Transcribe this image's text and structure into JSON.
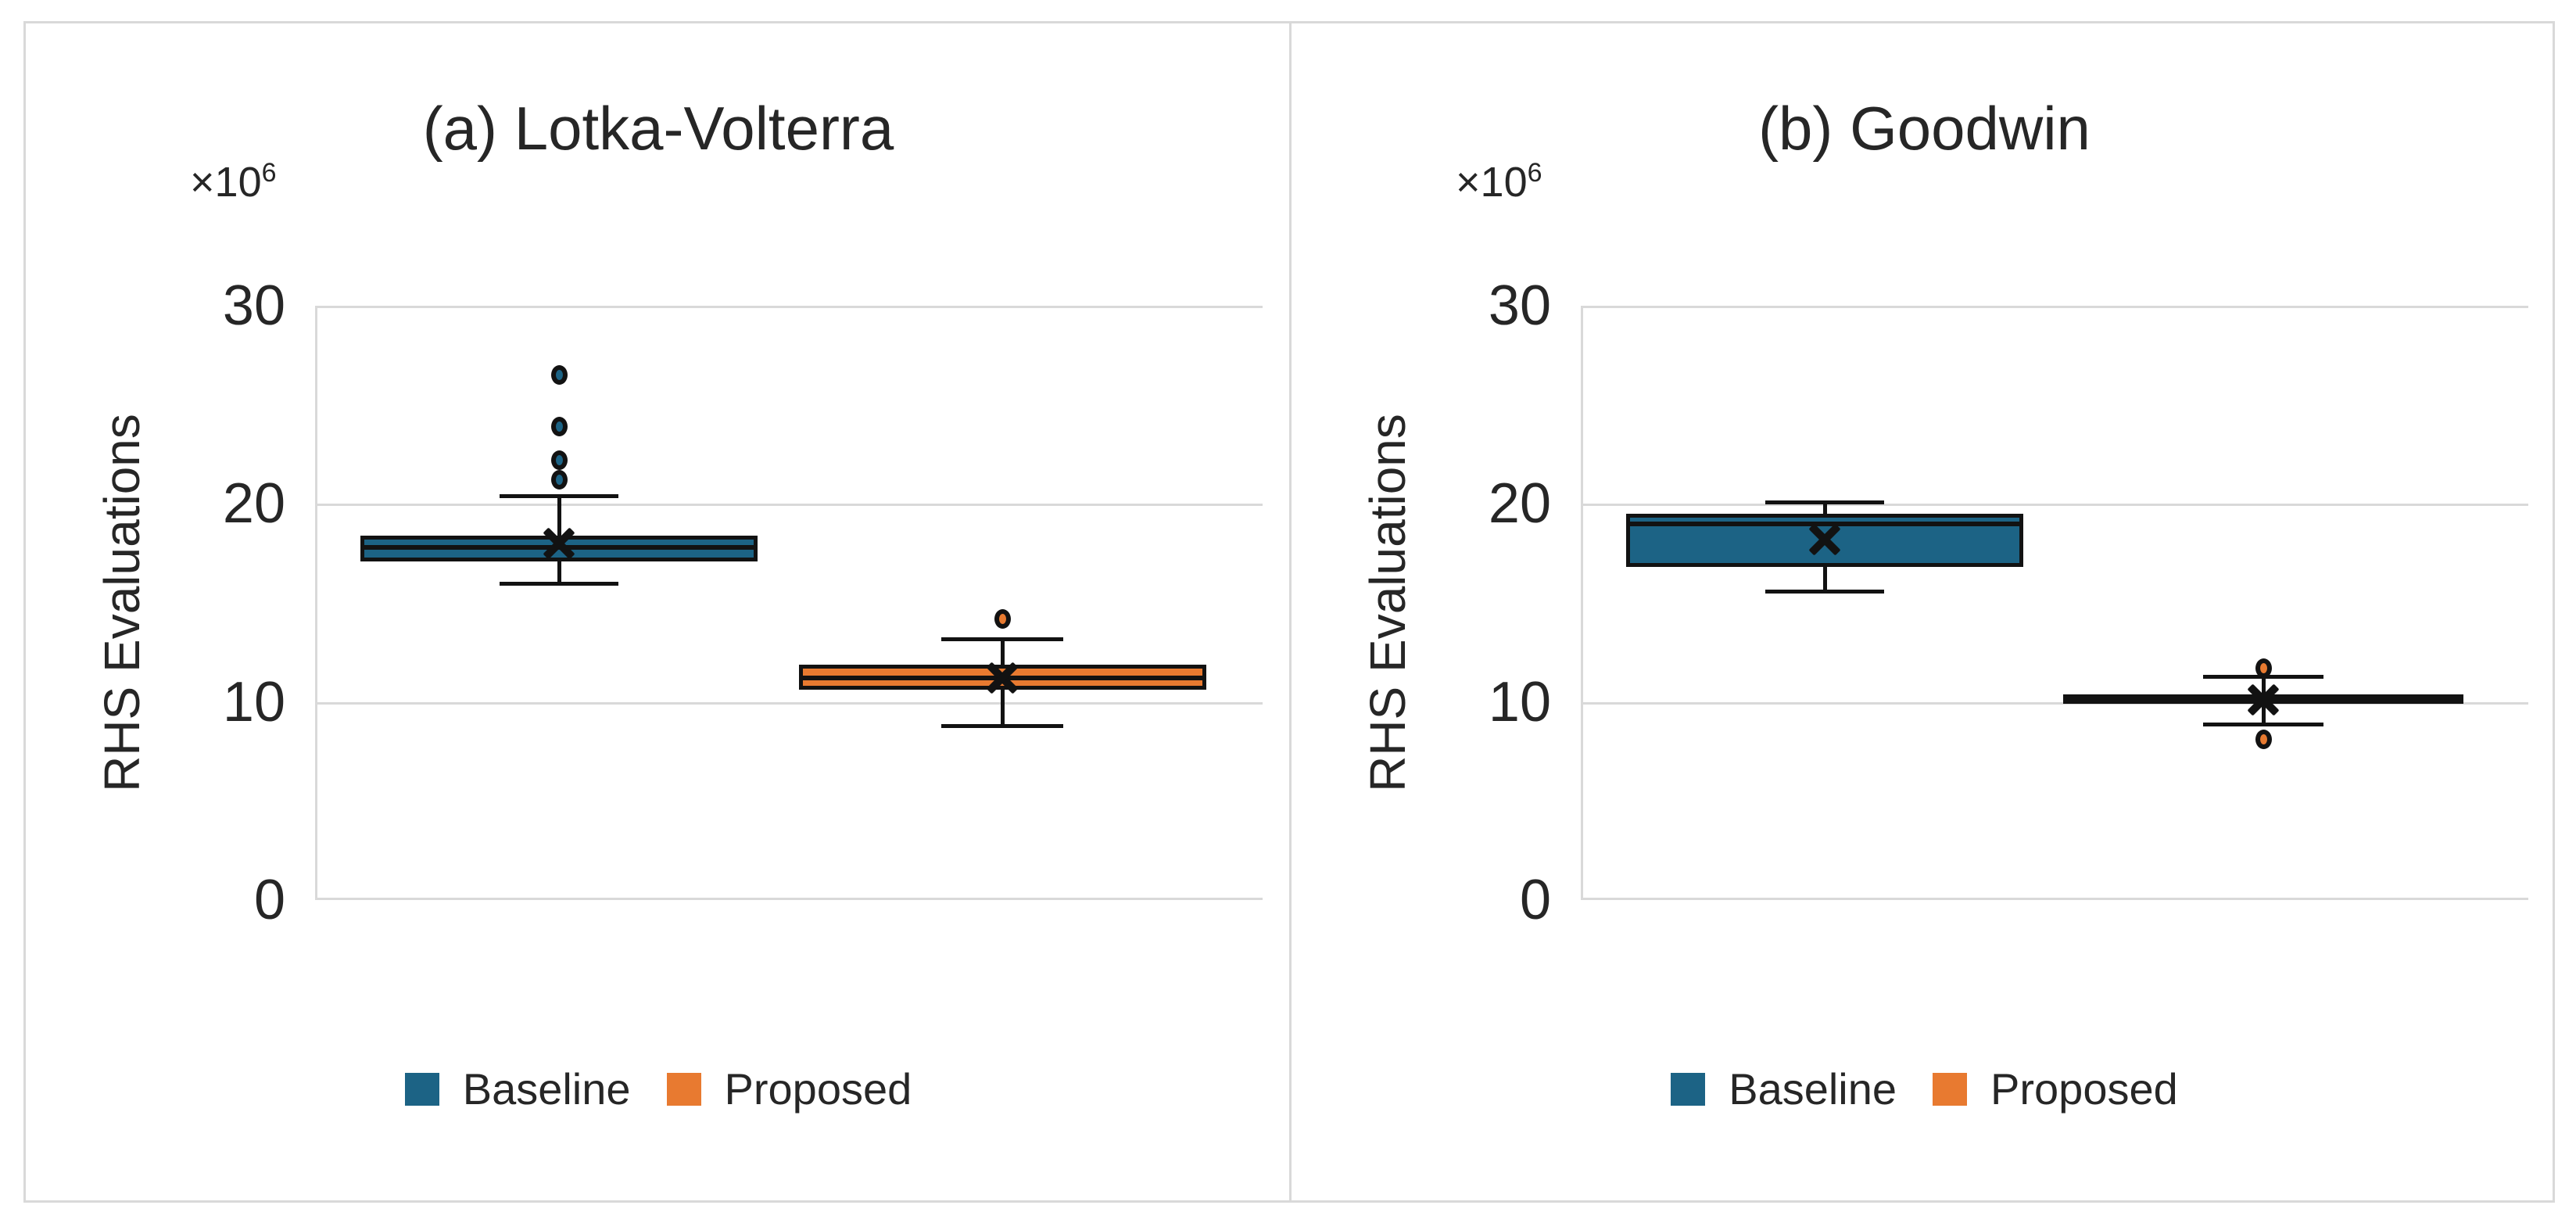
{
  "figure": {
    "background": "#ffffff",
    "border_color": "#d9d9d9"
  },
  "legend": {
    "items": [
      {
        "label": "Baseline",
        "color": "#1c6385"
      },
      {
        "label": "Proposed",
        "color": "#e87a30"
      }
    ]
  },
  "chart_data": [
    {
      "type": "box",
      "title": "(a) Lotka-Volterra",
      "ylabel": "RHS Evaluations",
      "scale_label": "×10",
      "scale_exp": "6",
      "ylim": [
        0,
        30
      ],
      "yticks": [
        30,
        20,
        10,
        0
      ],
      "grid": true,
      "legend": [
        "Baseline",
        "Proposed"
      ],
      "legend_position": "bottom",
      "units": "millions of RHS evaluations",
      "series": [
        {
          "name": "Baseline",
          "color": "#1c6385",
          "center_frac": 0.255,
          "width_frac": 0.419,
          "cap_frac": 0.3,
          "whisker_low": 16.0,
          "q1": 17.1,
          "median": 17.8,
          "q3": 18.4,
          "whisker_high": 20.4,
          "mean": 18.0,
          "outliers": [
            21.2,
            22.2,
            23.9,
            26.5
          ]
        },
        {
          "name": "Proposed",
          "color": "#e87a30",
          "center_frac": 0.723,
          "width_frac": 0.43,
          "cap_frac": 0.3,
          "whisker_low": 8.8,
          "q1": 10.6,
          "median": 11.2,
          "q3": 11.9,
          "whisker_high": 13.2,
          "mean": 11.2,
          "outliers": [
            14.2
          ]
        }
      ]
    },
    {
      "type": "box",
      "title": "(b) Goodwin",
      "ylabel": "RHS Evaluations",
      "scale_label": "×10",
      "scale_exp": "6",
      "ylim": [
        0,
        30
      ],
      "yticks": [
        30,
        20,
        10,
        0
      ],
      "grid": true,
      "legend": [
        "Baseline",
        "Proposed"
      ],
      "legend_position": "bottom",
      "units": "millions of RHS evaluations",
      "series": [
        {
          "name": "Baseline",
          "color": "#1c6385",
          "center_frac": 0.255,
          "width_frac": 0.419,
          "cap_frac": 0.3,
          "whisker_low": 15.6,
          "q1": 16.8,
          "median": 19.0,
          "q3": 19.5,
          "whisker_high": 20.1,
          "mean": 18.2,
          "outliers": []
        },
        {
          "name": "Proposed",
          "color": "#e87a30",
          "center_frac": 0.718,
          "width_frac": 0.422,
          "cap_frac": 0.3,
          "whisker_low": 8.9,
          "q1": 9.9,
          "median": 10.2,
          "q3": 10.4,
          "whisker_high": 11.3,
          "mean": 10.1,
          "outliers": [
            11.7,
            8.1
          ]
        }
      ]
    }
  ]
}
